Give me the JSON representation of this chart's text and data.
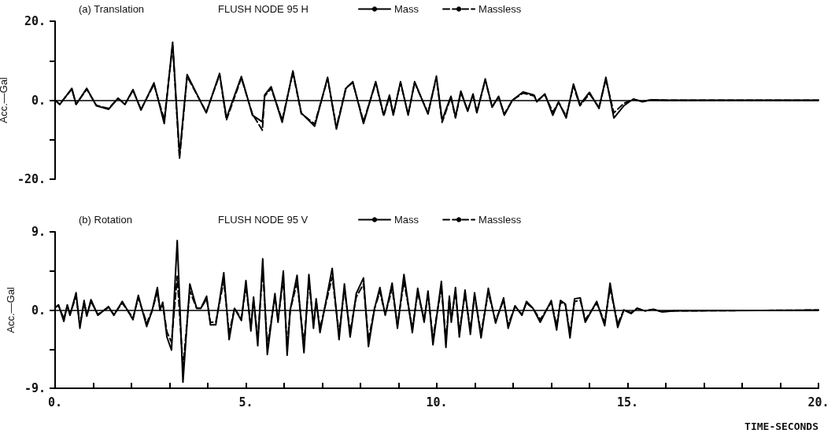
{
  "chart_data": [
    {
      "type": "line",
      "title": "(a) Translation",
      "subtitle": "FLUSH NODE 95 H",
      "ylabel": "Acc.—Gal",
      "legend": "top",
      "tick_labels": "y",
      "grid": false,
      "marker": "none",
      "xlim": [
        0,
        20
      ],
      "ylim": [
        -20,
        20
      ],
      "yticks": [
        {
          "value": -20,
          "label": "-20."
        },
        {
          "value": -10,
          "label": null
        },
        {
          "value": 0,
          "label": "0."
        },
        {
          "value": 10,
          "label": null
        },
        {
          "value": 20,
          "label": "20."
        }
      ],
      "ref_lines": [
        {
          "axis": "y",
          "value": 0,
          "color": "#000000"
        }
      ],
      "series": [
        {
          "name": "Mass",
          "color": "#000000",
          "line_style": "solid",
          "x": [
            0,
            0.12,
            0.44,
            0.55,
            0.83,
            1.08,
            1.4,
            1.65,
            1.83,
            2.04,
            2.25,
            2.59,
            2.86,
            3.08,
            3.26,
            3.46,
            3.96,
            4.31,
            4.49,
            4.88,
            5.17,
            5.43,
            5.49,
            5.66,
            5.95,
            6.23,
            6.45,
            6.8,
            7.14,
            7.37,
            7.62,
            7.8,
            8.08,
            8.4,
            8.61,
            8.76,
            8.86,
            9.05,
            9.25,
            9.42,
            9.77,
            9.99,
            10.14,
            10.37,
            10.49,
            10.63,
            10.81,
            10.95,
            11.05,
            11.27,
            11.45,
            11.62,
            11.77,
            11.98,
            12.26,
            12.55,
            12.62,
            12.83,
            13.04,
            13.19,
            13.39,
            13.58,
            13.75,
            14.0,
            14.25,
            14.43,
            14.64,
            14.9,
            15.15,
            15.39,
            15.61,
            16.03,
            20
          ],
          "values": [
            0,
            -1.1,
            3.0,
            -1.1,
            3.0,
            -1.4,
            -2.3,
            0.5,
            -1.1,
            2.7,
            -2.5,
            4.4,
            -5.9,
            14.7,
            -13.8,
            6.5,
            -3.2,
            6.8,
            -4.5,
            6.0,
            -3.8,
            -5.5,
            1.3,
            3.4,
            -5.6,
            7.4,
            -3.2,
            -6.6,
            5.8,
            -7.3,
            3.0,
            4.7,
            -5.9,
            4.7,
            -3.8,
            1.3,
            -3.8,
            4.7,
            -3.8,
            4.7,
            -3.5,
            6.1,
            -5.0,
            1.0,
            -4.2,
            2.3,
            -2.8,
            1.6,
            -3.2,
            5.4,
            -1.8,
            1.0,
            -3.8,
            0,
            2.1,
            1.3,
            -0.4,
            1.6,
            -3.8,
            -0.4,
            -4.5,
            4.1,
            -1.1,
            2.0,
            -2.1,
            5.8,
            -4.5,
            -1.4,
            0.3,
            -0.4,
            0.1,
            0,
            0
          ]
        },
        {
          "name": "Massless",
          "color": "#000000",
          "line_style": "dashed",
          "x": [
            0,
            0.12,
            0.44,
            0.55,
            0.83,
            1.08,
            1.4,
            1.65,
            1.83,
            2.04,
            2.25,
            2.59,
            2.86,
            3.08,
            3.26,
            3.46,
            3.96,
            4.31,
            4.49,
            4.88,
            5.17,
            5.43,
            5.49,
            5.66,
            5.95,
            6.23,
            6.45,
            6.8,
            7.14,
            7.37,
            7.62,
            7.8,
            8.08,
            8.4,
            8.61,
            8.76,
            8.86,
            9.05,
            9.25,
            9.42,
            9.77,
            9.99,
            10.14,
            10.37,
            10.49,
            10.63,
            10.81,
            10.95,
            11.05,
            11.27,
            11.45,
            11.62,
            11.77,
            11.98,
            12.26,
            12.55,
            12.62,
            12.83,
            13.04,
            13.19,
            13.39,
            13.58,
            13.75,
            14.0,
            14.25,
            14.43,
            14.64,
            14.9,
            15.15,
            15.39,
            15.61,
            16.03,
            20
          ],
          "values": [
            0,
            -1.0,
            2.8,
            -1.0,
            2.8,
            -1.3,
            -2.1,
            0.5,
            -1.0,
            2.5,
            -2.3,
            4.0,
            -5.0,
            14.0,
            -14.8,
            6.0,
            -3.0,
            6.4,
            -5.0,
            5.6,
            -3.5,
            -7.6,
            1.0,
            3.0,
            -5.0,
            7.0,
            -3.4,
            -6.0,
            5.4,
            -6.8,
            3.2,
            4.4,
            -5.4,
            4.4,
            -4.0,
            1.0,
            -3.5,
            4.4,
            -3.5,
            4.4,
            -3.2,
            5.6,
            -5.6,
            0.8,
            -4.5,
            2.0,
            -2.6,
            1.4,
            -3.0,
            5.0,
            -1.6,
            0.8,
            -3.5,
            0,
            1.8,
            1.1,
            -0.2,
            1.4,
            -3.0,
            -0.6,
            -4.0,
            3.6,
            -1.4,
            1.6,
            -1.8,
            5.2,
            -3.2,
            -0.8,
            0.2,
            -0.3,
            0.1,
            0,
            0
          ]
        }
      ]
    },
    {
      "type": "line",
      "title": "(b) Rotation",
      "subtitle": "FLUSH NODE 95 V",
      "xlabel": "TIME-SECONDS",
      "ylabel": "Acc.—Gal",
      "legend": "top",
      "grid": false,
      "marker": "none",
      "xlim": [
        0,
        20
      ],
      "ylim": [
        -9,
        9
      ],
      "xticks": [
        {
          "value": 0,
          "label": "0."
        },
        {
          "value": 1,
          "label": null
        },
        {
          "value": 2,
          "label": null
        },
        {
          "value": 3,
          "label": null
        },
        {
          "value": 4,
          "label": null
        },
        {
          "value": 5,
          "label": "5."
        },
        {
          "value": 6,
          "label": null
        },
        {
          "value": 7,
          "label": null
        },
        {
          "value": 8,
          "label": null
        },
        {
          "value": 9,
          "label": null
        },
        {
          "value": 10,
          "label": "10."
        },
        {
          "value": 11,
          "label": null
        },
        {
          "value": 12,
          "label": null
        },
        {
          "value": 13,
          "label": null
        },
        {
          "value": 14,
          "label": null
        },
        {
          "value": 15,
          "label": "15."
        },
        {
          "value": 16,
          "label": null
        },
        {
          "value": 17,
          "label": null
        },
        {
          "value": 18,
          "label": null
        },
        {
          "value": 19,
          "label": null
        },
        {
          "value": 20,
          "label": "20."
        }
      ],
      "yticks": [
        {
          "value": -9,
          "label": "-9."
        },
        {
          "value": -4.5,
          "label": null
        },
        {
          "value": 0,
          "label": "0."
        },
        {
          "value": 4.5,
          "label": null
        },
        {
          "value": 9,
          "label": "9."
        }
      ],
      "ref_lines": [
        {
          "axis": "y",
          "value": 0,
          "color": "#000000"
        }
      ],
      "series": [
        {
          "name": "Mass",
          "color": "#000000",
          "line_style": "solid",
          "x": [
            0,
            0.09,
            0.23,
            0.32,
            0.39,
            0.55,
            0.65,
            0.76,
            0.83,
            0.94,
            1.12,
            1.4,
            1.54,
            1.76,
            2.04,
            2.18,
            2.4,
            2.54,
            2.68,
            2.75,
            2.82,
            2.93,
            3.05,
            3.2,
            3.35,
            3.53,
            3.71,
            3.82,
            3.97,
            4.07,
            4.21,
            4.42,
            4.56,
            4.7,
            4.88,
            5.0,
            5.13,
            5.2,
            5.31,
            5.44,
            5.56,
            5.76,
            5.84,
            5.98,
            6.08,
            6.16,
            6.34,
            6.52,
            6.65,
            6.77,
            6.84,
            6.94,
            7.26,
            7.44,
            7.58,
            7.73,
            7.89,
            8.08,
            8.21,
            8.37,
            8.51,
            8.65,
            8.83,
            8.97,
            9.14,
            9.36,
            9.5,
            9.67,
            9.77,
            9.9,
            10.12,
            10.24,
            10.33,
            10.38,
            10.49,
            10.59,
            10.74,
            10.88,
            10.99,
            11.16,
            11.35,
            11.54,
            11.75,
            11.87,
            12.05,
            12.23,
            12.35,
            12.52,
            12.71,
            13.0,
            13.14,
            13.24,
            13.37,
            13.49,
            13.61,
            13.76,
            13.89,
            14.19,
            14.4,
            14.54,
            14.74,
            14.9,
            15.09,
            15.25,
            15.46,
            15.67,
            15.89,
            16.25,
            20
          ],
          "values": [
            0.3,
            0.6,
            -1.3,
            0.6,
            -0.6,
            2.0,
            -2.1,
            1.1,
            -0.7,
            1.2,
            -0.6,
            0.4,
            -0.6,
            1.0,
            -1.1,
            1.7,
            -1.9,
            -0.1,
            2.6,
            0,
            0.9,
            -3.1,
            -4.6,
            8.0,
            -8.3,
            3.0,
            0.2,
            0.2,
            1.6,
            -1.7,
            -1.7,
            4.3,
            -3.4,
            0.2,
            -1.2,
            3.4,
            -2.4,
            1.5,
            -4.1,
            5.9,
            -5.1,
            1.9,
            -1.4,
            4.5,
            -5.2,
            0,
            4.0,
            -4.9,
            4.1,
            -2.1,
            1.3,
            -2.6,
            4.8,
            -3.4,
            3.0,
            -3.1,
            1.9,
            3.7,
            -4.2,
            0.2,
            2.6,
            -0.6,
            3.1,
            -2.1,
            4.1,
            -2.6,
            2.5,
            -1.4,
            2.2,
            -4.0,
            3.3,
            -4.3,
            1.6,
            -1.4,
            2.6,
            -3.1,
            2.3,
            -2.8,
            2.0,
            -3.2,
            2.5,
            -1.5,
            1.4,
            -2.1,
            0.5,
            -0.6,
            1.0,
            0.2,
            -1.4,
            1.1,
            -2.3,
            1.1,
            0.7,
            -3.2,
            1.3,
            1.4,
            -1.4,
            1.0,
            -1.8,
            3.1,
            -2.0,
            0,
            -0.4,
            0.2,
            -0.1,
            0.1,
            -0.2,
            -0.1,
            0
          ]
        },
        {
          "name": "Massless",
          "color": "#000000",
          "line_style": "dashed",
          "x": [
            0,
            0.09,
            0.23,
            0.32,
            0.39,
            0.55,
            0.65,
            0.76,
            0.83,
            0.94,
            1.12,
            1.4,
            1.54,
            1.76,
            2.04,
            2.18,
            2.4,
            2.54,
            2.68,
            2.75,
            2.82,
            2.93,
            3.05,
            3.2,
            3.35,
            3.53,
            3.71,
            3.82,
            3.97,
            4.07,
            4.21,
            4.42,
            4.56,
            4.7,
            4.88,
            5.0,
            5.13,
            5.2,
            5.31,
            5.44,
            5.56,
            5.76,
            5.84,
            5.98,
            6.08,
            6.16,
            6.34,
            6.52,
            6.65,
            6.77,
            6.84,
            6.94,
            7.26,
            7.44,
            7.58,
            7.73,
            7.89,
            8.08,
            8.21,
            8.37,
            8.51,
            8.65,
            8.83,
            8.97,
            9.14,
            9.36,
            9.5,
            9.67,
            9.77,
            9.9,
            10.12,
            10.24,
            10.33,
            10.38,
            10.49,
            10.59,
            10.74,
            10.88,
            10.99,
            11.16,
            11.35,
            11.54,
            11.75,
            11.87,
            12.05,
            12.23,
            12.35,
            12.52,
            12.71,
            13.0,
            13.14,
            13.24,
            13.37,
            13.49,
            13.61,
            13.76,
            13.89,
            14.19,
            14.4,
            14.54,
            14.74,
            14.9,
            15.09,
            15.25,
            15.46,
            15.67,
            15.89,
            16.25,
            20
          ],
          "values": [
            0.3,
            0.5,
            -1.0,
            0.5,
            -0.5,
            1.6,
            -1.7,
            0.9,
            -0.6,
            1.0,
            -0.5,
            0.3,
            -0.5,
            0.8,
            -0.9,
            1.4,
            -1.5,
            -0.1,
            2.1,
            0,
            0.7,
            -2.5,
            -3.7,
            3.9,
            -6.6,
            2.2,
            0.2,
            0.2,
            1.3,
            -1.4,
            -1.4,
            3.4,
            -2.7,
            0.2,
            -1.0,
            2.7,
            -1.9,
            1.2,
            -3.3,
            4.7,
            -4.1,
            1.5,
            -1.1,
            3.6,
            -4.2,
            0,
            3.2,
            -3.9,
            3.3,
            -1.7,
            1.0,
            -2.1,
            3.8,
            -2.7,
            2.4,
            -2.5,
            1.5,
            3.0,
            -3.4,
            0.2,
            2.1,
            -0.5,
            2.5,
            -1.7,
            3.3,
            -2.1,
            2.0,
            -1.1,
            1.8,
            -3.2,
            2.6,
            -3.4,
            1.3,
            -1.1,
            2.1,
            -2.5,
            1.8,
            -2.2,
            1.6,
            -2.6,
            2.0,
            -1.2,
            1.1,
            -1.7,
            0.4,
            -0.5,
            0.8,
            0.2,
            -1.1,
            0.9,
            -1.8,
            0.9,
            0.6,
            -2.6,
            1.0,
            1.1,
            -1.1,
            0.8,
            -1.4,
            2.5,
            -1.6,
            0,
            -0.3,
            0.2,
            -0.1,
            0.1,
            -0.2,
            -0.1,
            0
          ]
        }
      ]
    }
  ]
}
